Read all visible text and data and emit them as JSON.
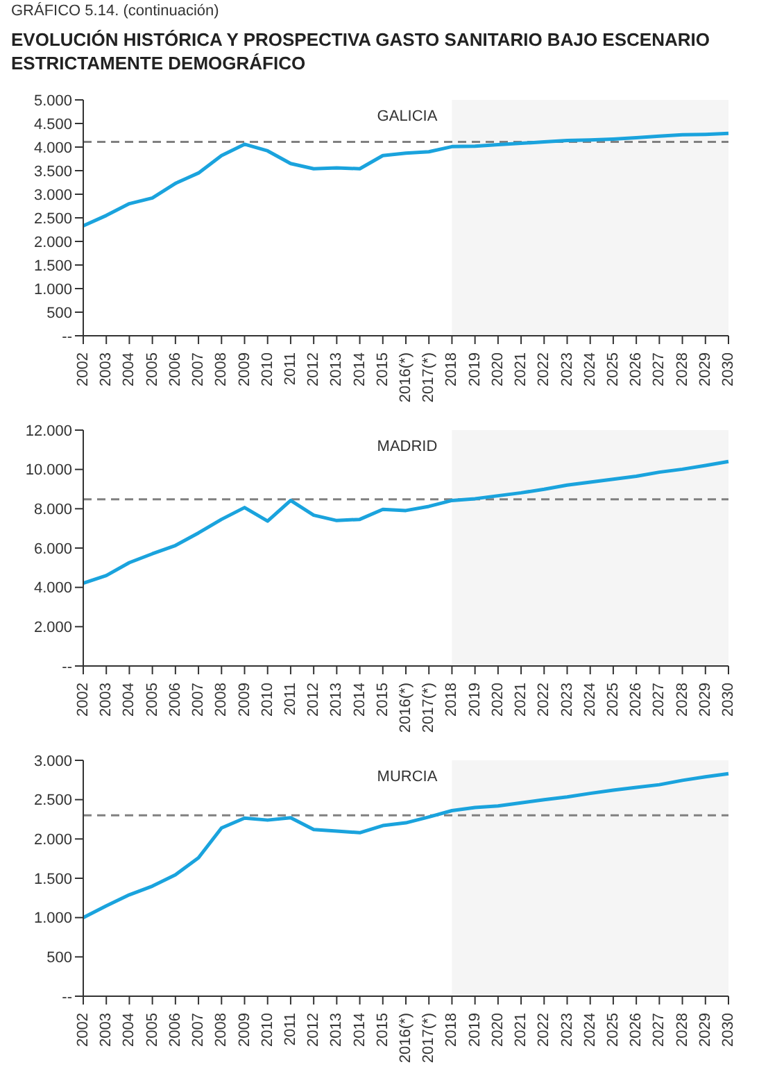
{
  "chart_data": [
    {
      "type": "line",
      "title": "GALICIA",
      "annotations": [
        "GRÁFICO 5.14. (continuación)",
        "EVOLUCIÓN HISTÓRICA Y PROSPECTIVA GASTO SANITARIO BAJO ESCENARIO ESTRICTAMENTE DEMOGRÁFICO"
      ],
      "categories": [
        "2002",
        "2003",
        "2004",
        "2005",
        "2006",
        "2007",
        "2008",
        "2009",
        "2010",
        "2011",
        "2012",
        "2013",
        "2014",
        "2015",
        "2016(*)",
        "2017(*)",
        "2018",
        "2019",
        "2020",
        "2021",
        "2022",
        "2023",
        "2024",
        "2025",
        "2026",
        "2027",
        "2028",
        "2029",
        "2030"
      ],
      "series": [
        {
          "color": "#1aa3dd",
          "values": [
            2330,
            2550,
            2800,
            2920,
            3230,
            3450,
            3820,
            4060,
            3920,
            3650,
            3540,
            3560,
            3540,
            3820,
            3870,
            3900,
            4010,
            4020,
            4050,
            4080,
            4110,
            4140,
            4150,
            4170,
            4200,
            4230,
            4260,
            4270,
            4290
          ]
        }
      ],
      "ylim": [
        0,
        5000
      ],
      "yticks": [
        {
          "value": 0,
          "label": "--"
        },
        500,
        {
          "value": 1000,
          "label": "1.000"
        },
        {
          "value": 1500,
          "label": "1.500"
        },
        {
          "value": 2000,
          "label": "2.000"
        },
        {
          "value": 2500,
          "label": "2.500"
        },
        {
          "value": 3000,
          "label": "3.000"
        },
        {
          "value": 3500,
          "label": "3.500"
        },
        {
          "value": 4000,
          "label": "4.000"
        },
        {
          "value": 4500,
          "label": "4.500"
        },
        {
          "value": 5000,
          "label": "5.000"
        }
      ],
      "ref_lines": [
        {
          "axis": "y",
          "value": 4110,
          "color": "#808080",
          "line_style": "dashed"
        }
      ],
      "bands": [
        {
          "axis": "x",
          "from": "2018",
          "to": "2030",
          "color": "#f5f5f5"
        }
      ],
      "grid": false,
      "legend": false,
      "marker": "none"
    },
    {
      "type": "line",
      "title": "MADRID",
      "categories": [
        "2002",
        "2003",
        "2004",
        "2005",
        "2006",
        "2007",
        "2008",
        "2009",
        "2010",
        "2011",
        "2012",
        "2013",
        "2014",
        "2015",
        "2016(*)",
        "2017(*)",
        "2018",
        "2019",
        "2020",
        "2021",
        "2022",
        "2023",
        "2024",
        "2025",
        "2026",
        "2027",
        "2028",
        "2029",
        "2030"
      ],
      "series": [
        {
          "color": "#1aa3dd",
          "values": [
            4210,
            4600,
            5260,
            5710,
            6130,
            6770,
            7460,
            8060,
            7370,
            8420,
            7670,
            7400,
            7460,
            7970,
            7910,
            8120,
            8420,
            8510,
            8660,
            8810,
            8990,
            9200,
            9350,
            9500,
            9650,
            9860,
            10010,
            10200,
            10400
          ]
        }
      ],
      "ylim": [
        0,
        12000
      ],
      "yticks": [
        {
          "value": 0,
          "label": "--"
        },
        {
          "value": 2000,
          "label": "2.000"
        },
        {
          "value": 4000,
          "label": "4.000"
        },
        {
          "value": 6000,
          "label": "6.000"
        },
        {
          "value": 8000,
          "label": "8.000"
        },
        {
          "value": 10000,
          "label": "10.000"
        },
        {
          "value": 12000,
          "label": "12.000"
        }
      ],
      "ref_lines": [
        {
          "axis": "y",
          "value": 8480,
          "color": "#808080",
          "line_style": "dashed"
        }
      ],
      "bands": [
        {
          "axis": "x",
          "from": "2018",
          "to": "2030",
          "color": "#f5f5f5"
        }
      ],
      "grid": false,
      "legend": false,
      "marker": "none"
    },
    {
      "type": "line",
      "title": "MURCIA",
      "categories": [
        "2002",
        "2003",
        "2004",
        "2005",
        "2006",
        "2007",
        "2008",
        "2009",
        "2010",
        "2011",
        "2012",
        "2013",
        "2014",
        "2015",
        "2016(*)",
        "2017(*)",
        "2018",
        "2019",
        "2020",
        "2021",
        "2022",
        "2023",
        "2024",
        "2025",
        "2026",
        "2027",
        "2028",
        "2029",
        "2030"
      ],
      "series": [
        {
          "color": "#1aa3dd",
          "values": [
            1000,
            1150,
            1290,
            1400,
            1545,
            1760,
            2140,
            2265,
            2240,
            2270,
            2120,
            2100,
            2080,
            2170,
            2205,
            2280,
            2360,
            2400,
            2420,
            2460,
            2500,
            2535,
            2580,
            2620,
            2655,
            2690,
            2745,
            2790,
            2830
          ]
        }
      ],
      "ylim": [
        0,
        3000
      ],
      "yticks": [
        {
          "value": 0,
          "label": "--"
        },
        500,
        {
          "value": 1000,
          "label": "1.000"
        },
        {
          "value": 1500,
          "label": "1.500"
        },
        {
          "value": 2000,
          "label": "2.000"
        },
        {
          "value": 2500,
          "label": "2.500"
        },
        {
          "value": 3000,
          "label": "3.000"
        }
      ],
      "ref_lines": [
        {
          "axis": "y",
          "value": 2300,
          "color": "#808080",
          "line_style": "dashed"
        }
      ],
      "bands": [
        {
          "axis": "x",
          "from": "2018",
          "to": "2030",
          "color": "#f5f5f5"
        }
      ],
      "grid": false,
      "legend": false,
      "marker": "none"
    }
  ]
}
